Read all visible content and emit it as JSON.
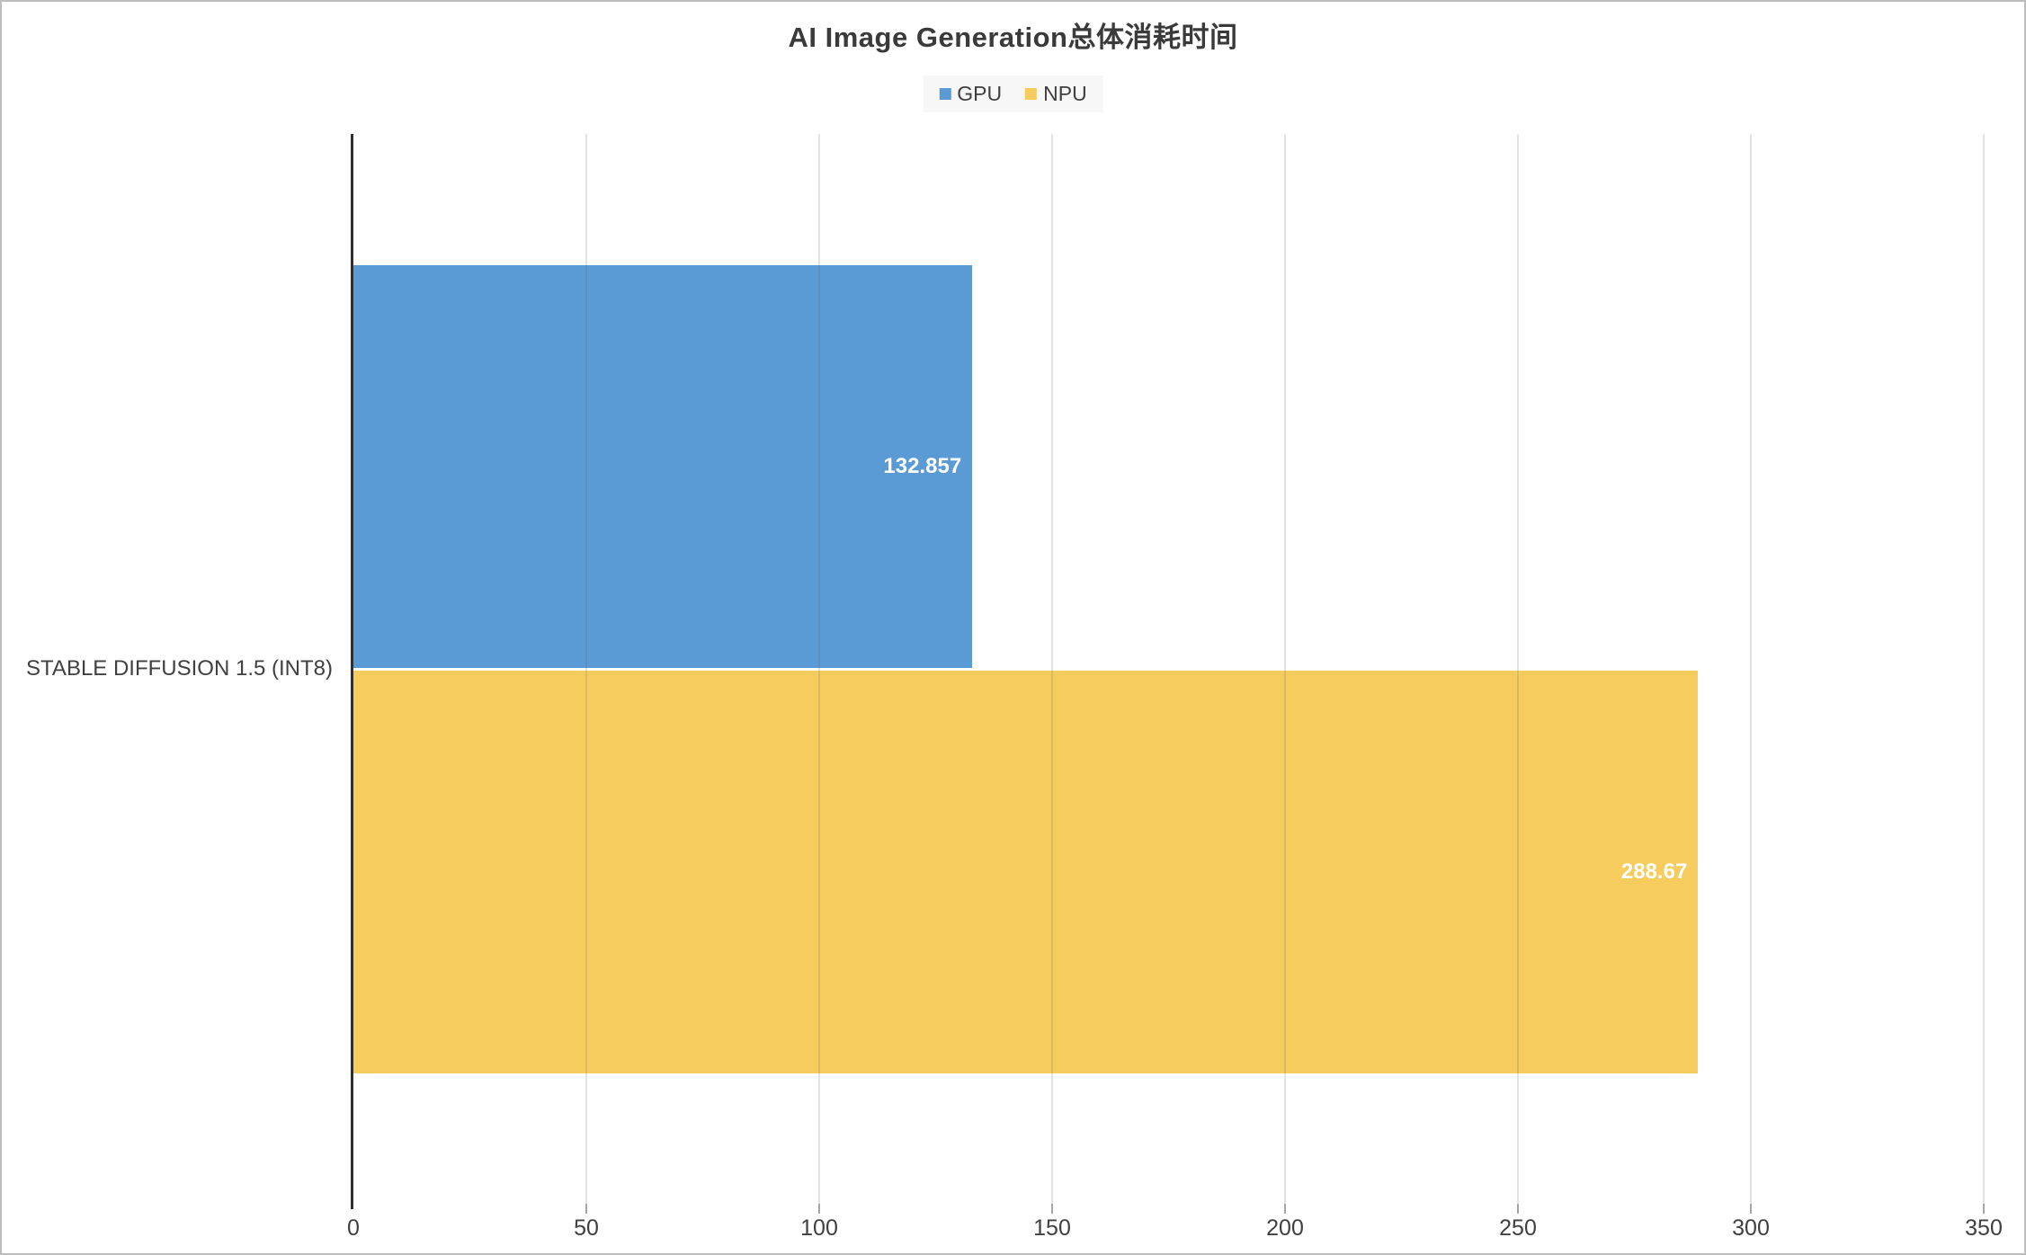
{
  "title": "AI Image Generation总体消耗时间",
  "legend": {
    "items": [
      {
        "label": "GPU",
        "color": "#5B9BD5"
      },
      {
        "label": "NPU",
        "color": "#F6CC5E"
      }
    ]
  },
  "category_label": "STABLE DIFFUSION 1.5 (INT8)",
  "colors": {
    "gpu_bar": "#5B9BD5",
    "npu_bar": "#F6CC5E",
    "axis_line": "#2f2f2f",
    "tick_text": "#404040",
    "legend_background": "#f7f7f7",
    "value_label_text": "#ffffff",
    "frame_border": "#bdbdbd"
  },
  "chart_data": {
    "type": "bar",
    "orientation": "horizontal",
    "title": "AI Image Generation总体消耗时间",
    "xlabel": "",
    "ylabel": "",
    "categories": [
      "STABLE DIFFUSION 1.5 (INT8)"
    ],
    "series": [
      {
        "name": "GPU",
        "color": "#5B9BD5",
        "values": [
          132.857
        ],
        "value_labels": [
          "132.857"
        ]
      },
      {
        "name": "NPU",
        "color": "#F6CC5E",
        "values": [
          288.67
        ],
        "value_labels": [
          "288.67"
        ]
      }
    ],
    "xlim": [
      0,
      350
    ],
    "xticks": [
      0,
      50,
      100,
      150,
      200,
      250,
      300,
      350
    ],
    "grid": true,
    "legend_position": "top"
  }
}
